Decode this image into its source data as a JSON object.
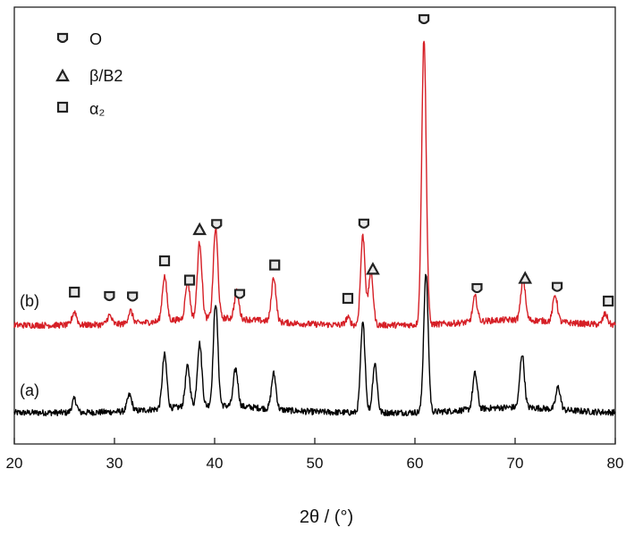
{
  "chart_data": {
    "type": "line",
    "xlabel": "2θ / (°)",
    "ylabel": "",
    "xlim": [
      20,
      80
    ],
    "xticks": [
      "20",
      "30",
      "40",
      "50",
      "60",
      "70",
      "80"
    ],
    "yticks": [],
    "grid": false,
    "legend_position": "top-left",
    "legend": [
      {
        "symbol": "O-phase-icon",
        "label": "O"
      },
      {
        "symbol": "triangle-icon",
        "label": "β/B2"
      },
      {
        "symbol": "square-icon",
        "label": "α₂"
      }
    ],
    "series": [
      {
        "name": "(a)",
        "color": "#000000",
        "peaks": [
          {
            "x": 26.0,
            "height": 15
          },
          {
            "x": 31.5,
            "height": 18
          },
          {
            "x": 35.0,
            "height": 60
          },
          {
            "x": 37.3,
            "height": 45
          },
          {
            "x": 38.5,
            "height": 70
          },
          {
            "x": 40.1,
            "height": 115
          },
          {
            "x": 42.1,
            "height": 42
          },
          {
            "x": 45.9,
            "height": 40
          },
          {
            "x": 54.8,
            "height": 100
          },
          {
            "x": 56.0,
            "height": 55
          },
          {
            "x": 61.1,
            "height": 155
          },
          {
            "x": 66.0,
            "height": 40
          },
          {
            "x": 70.7,
            "height": 60
          },
          {
            "x": 74.3,
            "height": 25
          }
        ]
      },
      {
        "name": "(b)",
        "color": "#d61f26",
        "peaks": [
          {
            "x": 26.0,
            "height": 15
          },
          {
            "x": 29.5,
            "height": 10
          },
          {
            "x": 31.6,
            "height": 14
          },
          {
            "x": 35.0,
            "height": 50
          },
          {
            "x": 37.3,
            "height": 42
          },
          {
            "x": 38.5,
            "height": 85
          },
          {
            "x": 40.1,
            "height": 100
          },
          {
            "x": 42.2,
            "height": 30
          },
          {
            "x": 45.9,
            "height": 50
          },
          {
            "x": 53.3,
            "height": 8
          },
          {
            "x": 54.8,
            "height": 100
          },
          {
            "x": 55.6,
            "height": 60
          },
          {
            "x": 60.9,
            "height": 320
          },
          {
            "x": 66.0,
            "height": 28
          },
          {
            "x": 70.8,
            "height": 45
          },
          {
            "x": 74.0,
            "height": 30
          },
          {
            "x": 79.0,
            "height": 12
          }
        ]
      }
    ],
    "phase_markers": [
      {
        "phase": "α₂",
        "x": 26.0,
        "series": "(b)"
      },
      {
        "phase": "O",
        "x": 29.5,
        "series": "(b)"
      },
      {
        "phase": "O",
        "x": 31.8,
        "series": "(b)"
      },
      {
        "phase": "α₂",
        "x": 35.0,
        "series": "(b)"
      },
      {
        "phase": "α₂",
        "x": 37.5,
        "series": "(b)"
      },
      {
        "phase": "β/B2",
        "x": 38.5,
        "series": "(b)"
      },
      {
        "phase": "O",
        "x": 40.2,
        "series": "(b)"
      },
      {
        "phase": "O",
        "x": 42.5,
        "series": "(b)"
      },
      {
        "phase": "α₂",
        "x": 46.0,
        "series": "(b)"
      },
      {
        "phase": "α₂",
        "x": 53.3,
        "series": "(b)"
      },
      {
        "phase": "O",
        "x": 54.9,
        "series": "(b)"
      },
      {
        "phase": "β/B2",
        "x": 55.8,
        "series": "(b)"
      },
      {
        "phase": "O",
        "x": 60.9,
        "series": "(b)"
      },
      {
        "phase": "O",
        "x": 66.2,
        "series": "(b)"
      },
      {
        "phase": "β/B2",
        "x": 71.0,
        "series": "(b)"
      },
      {
        "phase": "O",
        "x": 74.2,
        "series": "(b)"
      },
      {
        "phase": "α₂",
        "x": 79.3,
        "series": "(b)"
      }
    ]
  }
}
